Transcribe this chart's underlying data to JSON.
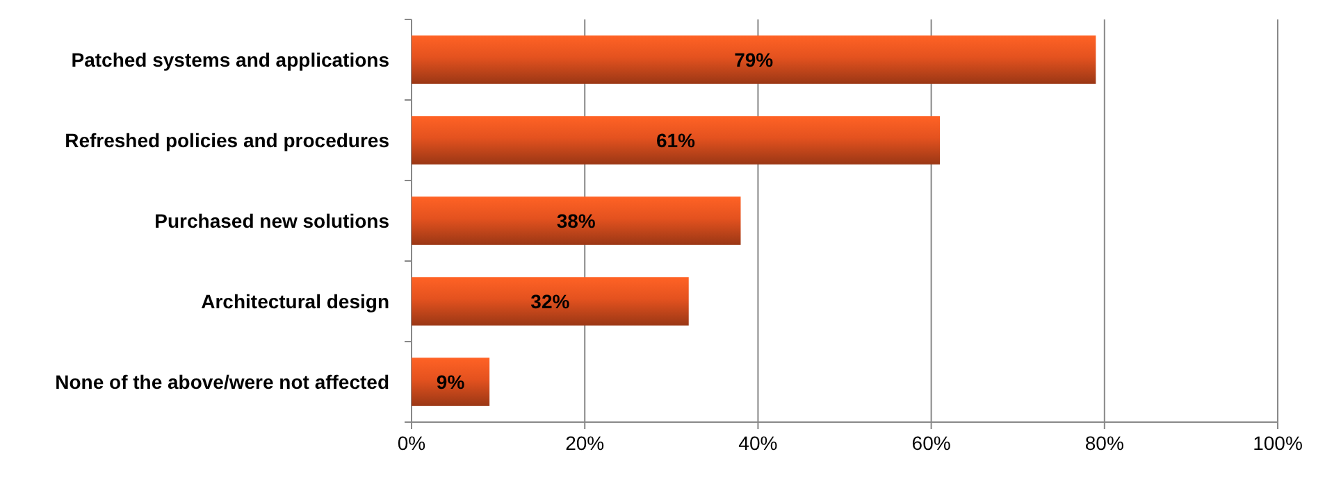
{
  "chart_data": {
    "type": "bar",
    "orientation": "horizontal",
    "categories": [
      "Patched systems and applications",
      "Refreshed policies and procedures",
      "Purchased new solutions",
      "Architectural design",
      "None of the above/were not affected"
    ],
    "values": [
      79,
      61,
      38,
      32,
      9
    ],
    "color": "#e4521f",
    "data_labels": true,
    "value_labels": [
      "79%",
      "61%",
      "38%",
      "32%",
      "9%"
    ],
    "xlim": [
      0,
      100
    ],
    "xticks": [
      {
        "value": 0,
        "label": "0%"
      },
      {
        "value": 20,
        "label": "20%"
      },
      {
        "value": 40,
        "label": "40%"
      },
      {
        "value": 60,
        "label": "60%"
      },
      {
        "value": 80,
        "label": "80%"
      },
      {
        "value": 100,
        "label": "100%"
      }
    ],
    "grid": "x"
  }
}
